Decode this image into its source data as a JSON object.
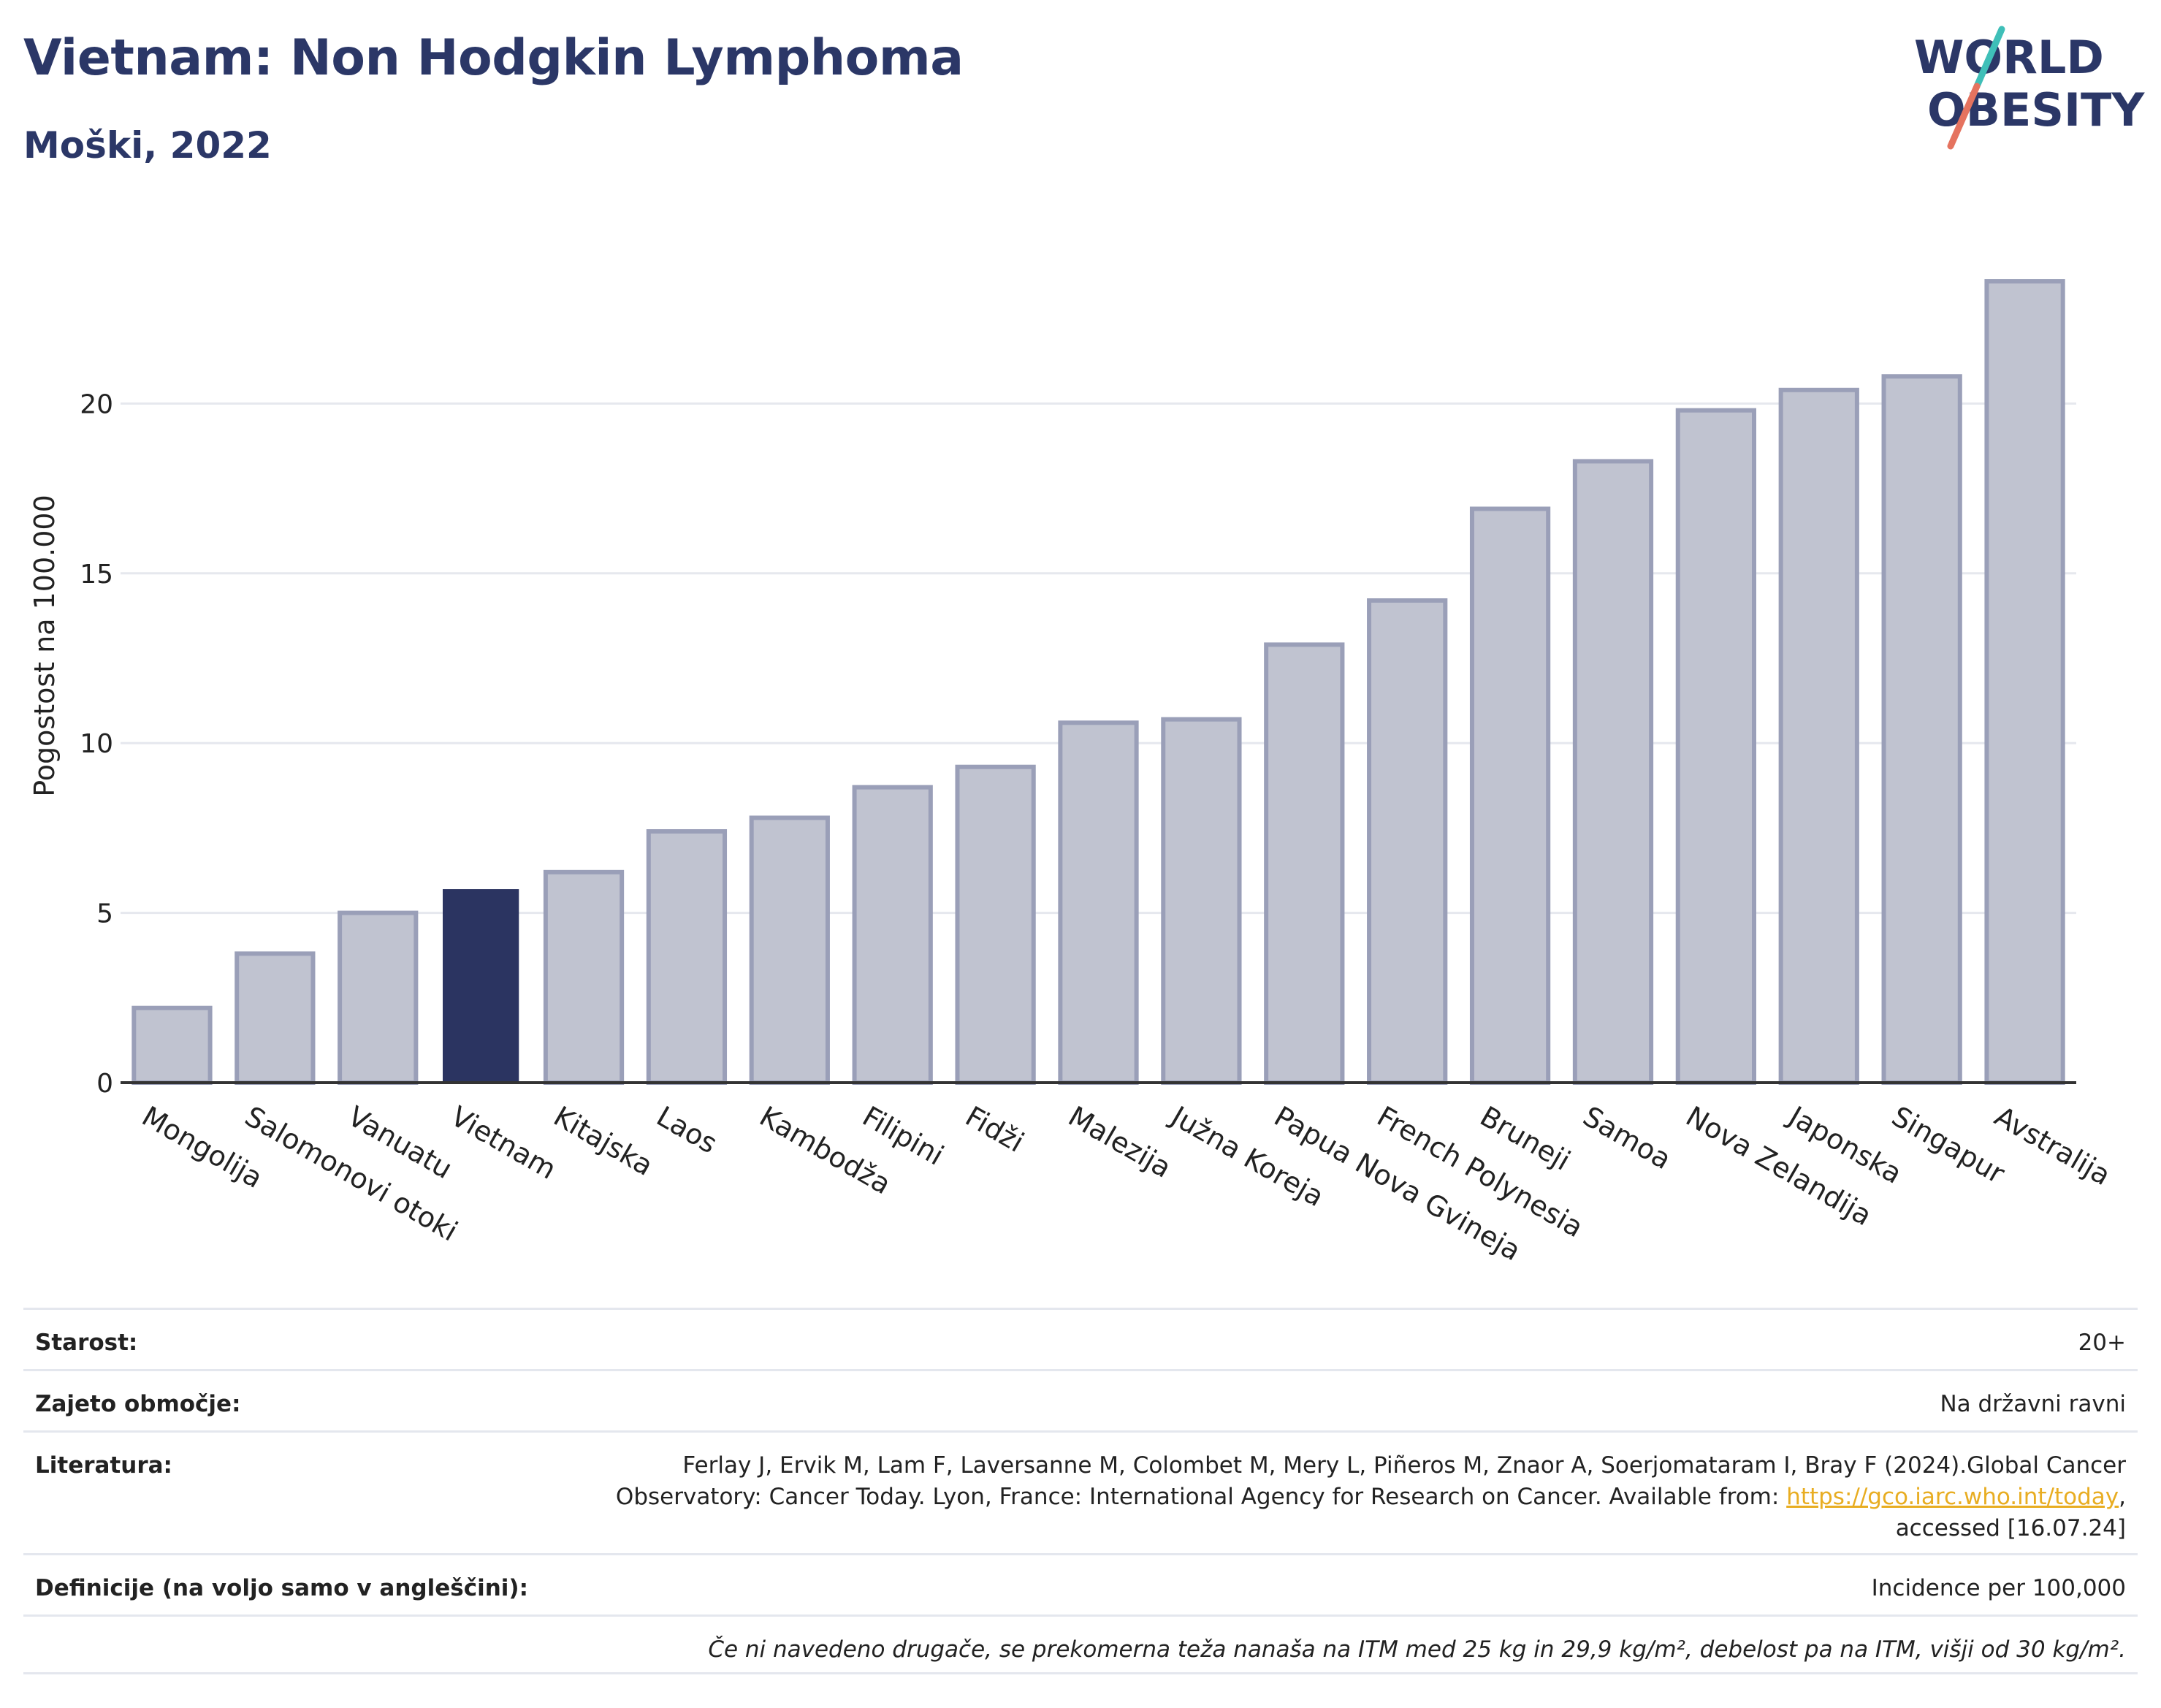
{
  "header": {
    "title": "Vietnam: Non Hodgkin Lymphoma",
    "subtitle": "Moški, 2022"
  },
  "logo": {
    "text": "WORLD OBESITY",
    "line1": "WORLD",
    "line2": "OBESITY",
    "colors": [
      "#2b3767",
      "#3fbfb8",
      "#e5735f"
    ]
  },
  "chart_data": {
    "type": "bar",
    "title": "Vietnam: Non Hodgkin Lymphoma",
    "subtitle": "Moški, 2022",
    "ylabel": "Pogostost na 100.000",
    "xlabel": "",
    "ylim": [
      0,
      25
    ],
    "yticks": [
      0,
      5,
      10,
      15,
      20
    ],
    "grid": true,
    "categories": [
      "Mongolija",
      "Salomonovi otoki",
      "Vanuatu",
      "Vietnam",
      "Kitajska",
      "Laos",
      "Kambodža",
      "Filipini",
      "Fidži",
      "Malezija",
      "Južna Koreja",
      "Papua Nova Gvineja",
      "French Polynesia",
      "Bruneji",
      "Samoa",
      "Nova Zelandija",
      "Japonska",
      "Singapur",
      "Avstralija"
    ],
    "values": [
      2.2,
      3.8,
      5.0,
      5.7,
      6.2,
      7.4,
      7.8,
      8.7,
      9.3,
      10.6,
      10.7,
      12.9,
      14.2,
      16.9,
      18.3,
      19.8,
      20.4,
      20.8,
      23.6
    ],
    "highlight": "Vietnam",
    "colors": {
      "bar": "#c0c3d0",
      "bar_border": "#9a9fb8",
      "highlight": "#2b3461",
      "grid": "#e6e8ee",
      "axis": "#333333"
    }
  },
  "info": {
    "age_label": "Starost:",
    "age_value": "20+",
    "coverage_label": "Zajeto območje:",
    "coverage_value": "Na državni ravni",
    "reference_label": "Literatura:",
    "reference_text": "Ferlay J, Ervik M, Lam F, Laversanne M, Colombet M, Mery L, Piñeros M, Znaor A, Soerjomataram I, Bray F (2024).Global Cancer Observatory: Cancer Today. Lyon, France: International Agency for Research on Cancer. Available from:",
    "reference_link": "https://gco.iarc.who.int/today",
    "reference_suffix": "accessed [16.07.24]",
    "definitions_label": "Definicije (na voljo samo v angleščini):",
    "definitions_value": "Incidence per 100,000",
    "note": "Če ni navedeno drugače, se prekomerna teža nanaša na ITM med 25 kg in 29,9 kg/m², debelost pa na ITM, višji od 30 kg/m²."
  }
}
